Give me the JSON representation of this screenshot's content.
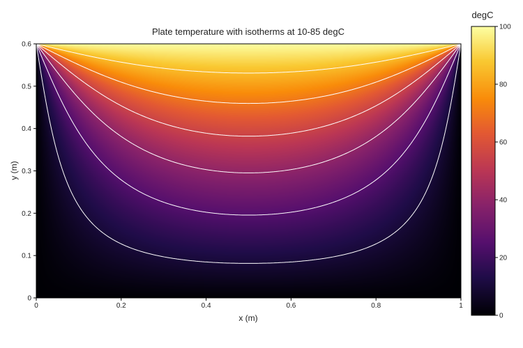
{
  "chart_data": {
    "type": "heatmap",
    "title": "Plate temperature with isotherms at 10-85 degC",
    "xlabel": "x (m)",
    "ylabel": "y (m)",
    "xlim": [
      0,
      1
    ],
    "ylim": [
      0,
      0.6
    ],
    "x_ticks": [
      "0",
      "0.2",
      "0.4",
      "0.6",
      "0.8",
      "1"
    ],
    "y_ticks": [
      "0",
      "0.1",
      "0.2",
      "0.3",
      "0.4",
      "0.5",
      "0.6"
    ],
    "colorbar": {
      "title": "degC",
      "range": [
        0,
        100
      ],
      "ticks": [
        "0",
        "20",
        "40",
        "60",
        "80",
        "100"
      ],
      "colormap": "inferno"
    },
    "boundary_conditions": {
      "top_edge_temperature": 100,
      "other_edges_temperature": 0
    },
    "isotherm_levels": [
      10,
      25,
      40,
      55,
      70,
      85
    ],
    "isotherm_color": "#ffffff"
  }
}
